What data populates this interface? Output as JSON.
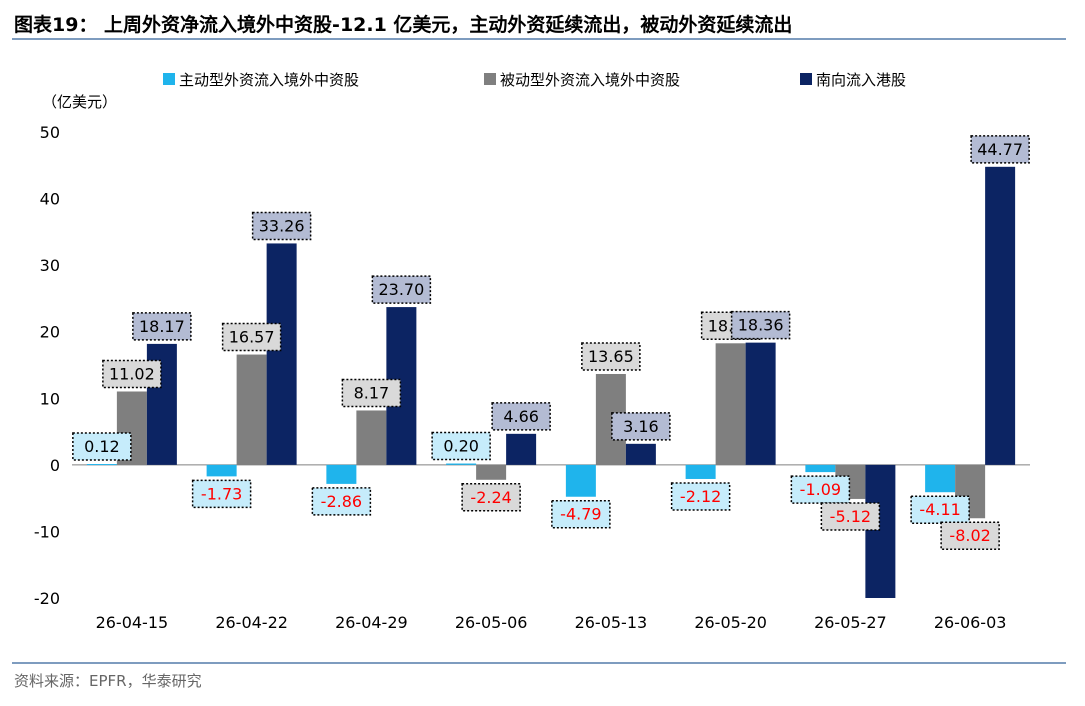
{
  "title": "图表19： 上周外资净流入境外中资股-12.1 亿美元，主动外资延续流出，被动外资延续流出",
  "source": "资料来源：EPFR，华泰研究",
  "chart_data": {
    "type": "bar",
    "unit_label": "（亿美元）",
    "categories": [
      "26-04-15",
      "26-04-22",
      "26-04-29",
      "26-05-06",
      "26-05-13",
      "26-05-20",
      "26-05-27",
      "26-06-03"
    ],
    "series": [
      {
        "name": "主动型外资流入境外中资股",
        "color": "#1fb4ec",
        "values": [
          0.12,
          -1.73,
          -2.86,
          0.2,
          -4.79,
          -2.12,
          -1.09,
          -4.11
        ],
        "labels": [
          "0.12",
          "-1.73",
          "-2.86",
          "0.20",
          "-4.79",
          "-2.12",
          "-1.09",
          "-4.11"
        ]
      },
      {
        "name": "被动型外资流入境外中资股",
        "color": "#7f7f7f",
        "values": [
          11.02,
          16.57,
          8.17,
          -2.24,
          13.65,
          18.26,
          -5.12,
          -8.02
        ],
        "labels": [
          "11.02",
          "16.57",
          "8.17",
          "-2.24",
          "13.65",
          "18.26",
          "-5.12",
          "-8.02"
        ]
      },
      {
        "name": "南向流入港股",
        "color": "#0c2463",
        "values": [
          18.17,
          33.26,
          23.7,
          4.66,
          3.16,
          18.36,
          -20.5,
          44.77
        ],
        "labels": [
          "18.17",
          "33.26",
          "23.70",
          "4.66",
          "3.16",
          "18.36",
          "",
          "44.77"
        ]
      }
    ],
    "ylim": [
      -20,
      50
    ],
    "yticks": [
      -20,
      -10,
      0,
      10,
      20,
      30,
      40,
      50
    ],
    "legend_position": "top",
    "label_colors": {
      "positive": "#000000",
      "negative": "#ff0000"
    },
    "label_box_colors": [
      "#c6ecfb",
      "#d9d9d9",
      "#b3bbd3"
    ]
  }
}
